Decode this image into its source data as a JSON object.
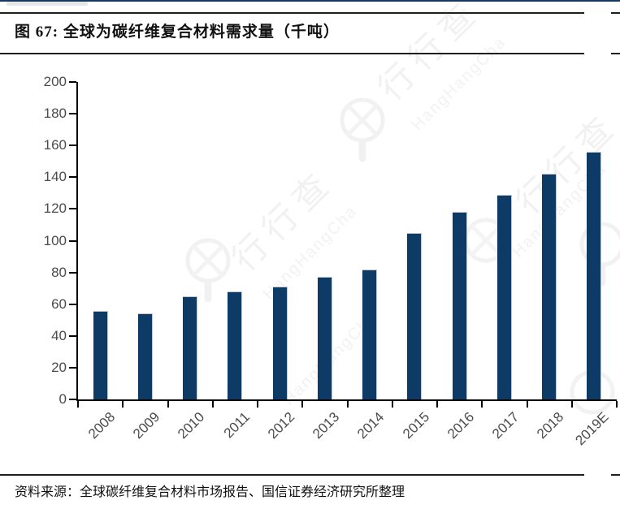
{
  "header": {
    "title": "图 67:  全球为碳纤维复合材料需求量（千吨）"
  },
  "footer": {
    "source": "资料来源：全球碳纤维复合材料市场报告、国信证券经济研究所整理"
  },
  "watermark": {
    "text_cn": "行行查",
    "text_en": "HangHangCha"
  },
  "colors": {
    "bar": "#0e3a66",
    "axis": "#000000",
    "tick_label": "#4b4b4b",
    "top_border": "#16365c",
    "watermark": "#f2f2f2"
  },
  "chart_data": {
    "type": "bar",
    "title": "全球为碳纤维复合材料需求量（千吨）",
    "categories": [
      "2008",
      "2009",
      "2010",
      "2011",
      "2012",
      "2013",
      "2014",
      "2015",
      "2016",
      "2017",
      "2018",
      "2019E"
    ],
    "values": [
      56,
      54,
      65,
      68,
      71,
      77,
      82,
      105,
      118,
      129,
      142,
      156
    ],
    "xlabel": "",
    "ylabel": "",
    "ylim": [
      0,
      200
    ],
    "ytick_step": 20,
    "grid": false,
    "legend": null,
    "bar_color": "#0e3a66"
  }
}
